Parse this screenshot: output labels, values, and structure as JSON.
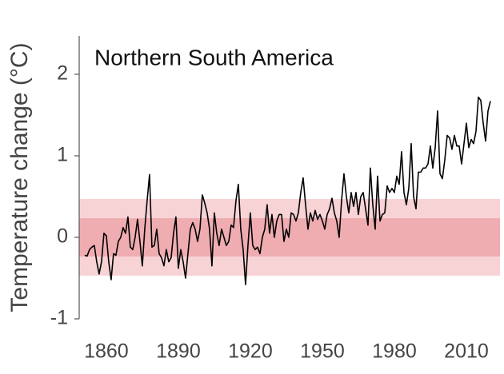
{
  "chart_data": {
    "type": "line",
    "title": "Northern South America",
    "y_label": "Temperature change (°C)",
    "xlim": [
      1848.7,
      2024
    ],
    "ylim": [
      -1,
      2.47
    ],
    "xticks": [
      1860,
      1890,
      1920,
      1950,
      1980,
      2010
    ],
    "yticks": [
      -1,
      0,
      1,
      2
    ],
    "bands": [
      {
        "lower": -0.47,
        "upper": 0.47,
        "color": "#f7d3d6"
      },
      {
        "lower": -0.235,
        "upper": 0.235,
        "color": "#efadb1"
      }
    ],
    "x": [
      1851,
      1852,
      1853,
      1854,
      1855,
      1856,
      1857,
      1858,
      1859,
      1860,
      1861,
      1862,
      1863,
      1864,
      1865,
      1866,
      1867,
      1868,
      1869,
      1870,
      1871,
      1872,
      1873,
      1874,
      1875,
      1876,
      1877,
      1878,
      1879,
      1880,
      1881,
      1882,
      1883,
      1884,
      1885,
      1886,
      1887,
      1888,
      1889,
      1890,
      1891,
      1892,
      1893,
      1894,
      1895,
      1896,
      1897,
      1898,
      1899,
      1900,
      1901,
      1902,
      1903,
      1904,
      1905,
      1906,
      1907,
      1908,
      1909,
      1910,
      1911,
      1912,
      1913,
      1914,
      1915,
      1916,
      1917,
      1918,
      1919,
      1920,
      1921,
      1922,
      1923,
      1924,
      1925,
      1926,
      1927,
      1928,
      1929,
      1930,
      1931,
      1932,
      1933,
      1934,
      1935,
      1936,
      1937,
      1938,
      1939,
      1940,
      1941,
      1942,
      1943,
      1944,
      1945,
      1946,
      1947,
      1948,
      1949,
      1950,
      1951,
      1952,
      1953,
      1954,
      1955,
      1956,
      1957,
      1958,
      1959,
      1960,
      1961,
      1962,
      1963,
      1964,
      1965,
      1966,
      1967,
      1968,
      1969,
      1970,
      1971,
      1972,
      1973,
      1974,
      1975,
      1976,
      1977,
      1978,
      1979,
      1980,
      1981,
      1982,
      1983,
      1984,
      1985,
      1986,
      1987,
      1988,
      1989,
      1990,
      1991,
      1992,
      1993,
      1994,
      1995,
      1996,
      1997,
      1998,
      1999,
      2000,
      2001,
      2002,
      2003,
      2004,
      2005,
      2006,
      2007,
      2008,
      2009,
      2010,
      2011,
      2012,
      2013,
      2014,
      2015,
      2016,
      2017,
      2018,
      2019,
      2020
    ],
    "series": [
      {
        "color": "#000000",
        "values": [
          -0.22,
          -0.23,
          -0.15,
          -0.12,
          -0.1,
          -0.3,
          -0.45,
          -0.3,
          0.05,
          0.02,
          -0.3,
          -0.52,
          -0.2,
          -0.22,
          -0.05,
          0.0,
          0.12,
          0.05,
          0.25,
          -0.12,
          -0.15,
          0.0,
          0.22,
          -0.05,
          -0.35,
          0.1,
          0.45,
          0.77,
          -0.12,
          -0.1,
          0.1,
          -0.2,
          -0.25,
          -0.35,
          -0.15,
          -0.3,
          -0.25,
          0.05,
          0.25,
          -0.38,
          -0.15,
          -0.3,
          -0.5,
          -0.2,
          0.1,
          0.18,
          0.1,
          -0.05,
          0.1,
          0.52,
          0.42,
          0.3,
          0.1,
          -0.35,
          0.3,
          0.05,
          -0.1,
          0.1,
          0.0,
          -0.1,
          -0.05,
          0.15,
          0.12,
          0.45,
          0.65,
          0.1,
          -0.15,
          -0.58,
          -0.1,
          0.3,
          -0.1,
          -0.15,
          -0.12,
          -0.2,
          0.0,
          0.1,
          0.4,
          0.05,
          0.28,
          0.0,
          0.2,
          0.28,
          0.28,
          -0.05,
          0.1,
          0.0,
          0.3,
          0.28,
          0.2,
          0.3,
          0.55,
          0.73,
          0.4,
          0.1,
          0.3,
          0.2,
          0.33,
          0.22,
          0.28,
          0.2,
          0.1,
          0.28,
          0.35,
          0.48,
          0.3,
          0.2,
          0.0,
          0.45,
          0.78,
          0.5,
          0.3,
          0.55,
          0.38,
          0.55,
          0.28,
          0.5,
          0.55,
          0.35,
          0.15,
          0.85,
          0.4,
          0.1,
          0.75,
          0.2,
          0.28,
          0.3,
          0.63,
          0.55,
          0.6,
          0.55,
          0.75,
          0.65,
          1.05,
          0.55,
          0.4,
          0.6,
          1.15,
          0.5,
          0.35,
          0.8,
          0.8,
          0.85,
          0.85,
          0.9,
          1.12,
          0.85,
          1.1,
          1.55,
          0.78,
          0.72,
          0.95,
          1.25,
          1.22,
          1.08,
          1.25,
          1.12,
          1.12,
          0.9,
          1.15,
          1.4,
          1.1,
          1.2,
          1.15,
          1.3,
          1.72,
          1.68,
          1.4,
          1.18,
          1.55,
          1.67
        ]
      }
    ]
  }
}
